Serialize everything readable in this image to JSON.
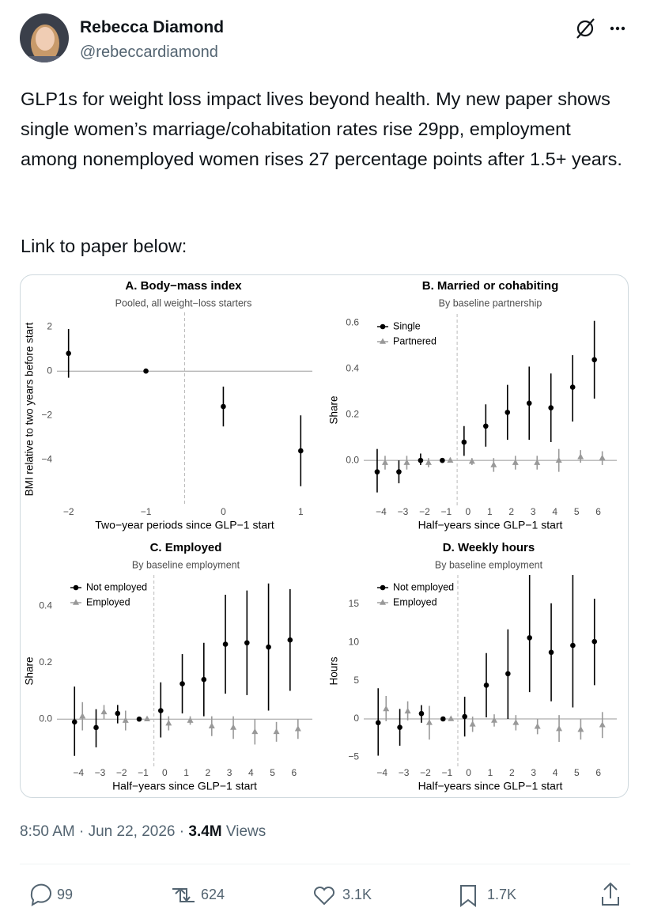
{
  "author": {
    "name": "Rebecca Diamond",
    "handle": "@rebeccardiamond"
  },
  "text": [
    "GLP1s for weight loss impact lives beyond health. My new paper shows single women’s marriage/cohabitation rates rise 29pp, employment among nonemployed women rises 27 percentage points after 1.5+ years.",
    "Link to paper below:"
  ],
  "chart_data": [
    {
      "type": "errorbar",
      "title": "A. Body−mass index",
      "subtitle": "Pooled, all weight−loss starters",
      "x_label": "Two−year periods since GLP−1 start",
      "y_label": "BMI relative to two years before start",
      "x": [
        -2,
        -1,
        0,
        1
      ],
      "series": [
        {
          "color": "#000000",
          "marker": "circle",
          "values": [
            0.8,
            0,
            -1.6,
            -3.6
          ],
          "lower": [
            -0.3,
            null,
            -2.5,
            -5.2
          ],
          "upper": [
            1.9,
            null,
            -0.7,
            -2.0
          ]
        }
      ],
      "xlim": [
        -2.15,
        1.15
      ],
      "ylim": [
        -6.1,
        2.65
      ],
      "xticks": [
        {
          "value": -2,
          "label": "−2"
        },
        {
          "value": -1,
          "label": "−1"
        },
        0,
        1
      ],
      "yticks": [
        {
          "value": -4,
          "label": "−4"
        },
        {
          "value": -2,
          "label": "−2"
        },
        0,
        2
      ],
      "hline": 0,
      "vline": -0.5,
      "grid": false
    },
    {
      "type": "errorbar",
      "title": "B. Married or cohabiting",
      "subtitle": "By baseline partnership",
      "x_label": "Half−years since GLP−1 start",
      "y_label": "Share",
      "legend": "top-left",
      "x": [
        -4,
        -3,
        -2,
        -1,
        0,
        1,
        2,
        3,
        4,
        5,
        6
      ],
      "series": [
        {
          "name": "Single",
          "color": "#000000",
          "marker": "circle",
          "values": [
            -0.05,
            -0.05,
            0.0,
            0.0,
            0.08,
            0.15,
            0.21,
            0.25,
            0.23,
            0.32,
            0.44
          ],
          "lower": [
            -0.14,
            -0.1,
            -0.02,
            null,
            0.02,
            0.06,
            0.09,
            0.09,
            0.08,
            0.17,
            0.27
          ],
          "upper": [
            0.05,
            0.0,
            0.03,
            null,
            0.15,
            0.245,
            0.33,
            0.41,
            0.38,
            0.46,
            0.61
          ]
        },
        {
          "name": "Partnered",
          "color": "#999999",
          "marker": "triangle",
          "values": [
            -0.01,
            -0.01,
            -0.01,
            0.0,
            -0.005,
            -0.02,
            -0.01,
            -0.01,
            0.0,
            0.015,
            0.01
          ],
          "lower": [
            -0.04,
            -0.04,
            -0.03,
            null,
            -0.02,
            -0.05,
            -0.04,
            -0.04,
            -0.05,
            -0.01,
            -0.02
          ],
          "upper": [
            0.02,
            0.02,
            0.01,
            null,
            0.01,
            0.01,
            0.02,
            0.02,
            0.05,
            0.045,
            0.04
          ]
        }
      ],
      "xlim": [
        -4.8,
        6.85
      ],
      "ylim": [
        -0.2,
        0.64
      ],
      "xticks": [
        {
          "value": -4,
          "label": "−4"
        },
        {
          "value": -3,
          "label": "−3"
        },
        {
          "value": -2,
          "label": "−2"
        },
        {
          "value": -1,
          "label": "−1"
        },
        0,
        1,
        2,
        3,
        4,
        5,
        6
      ],
      "yticks": [
        {
          "value": 0,
          "label": "0.0"
        },
        0.2,
        0.4,
        0.6
      ],
      "hline": 0,
      "vline": -0.5,
      "grid": false
    },
    {
      "type": "errorbar",
      "title": "C. Employed",
      "subtitle": "By baseline employment",
      "x_label": "Half−years since GLP−1 start",
      "y_label": "Share",
      "legend": "top-left",
      "x": [
        -4,
        -3,
        -2,
        -1,
        0,
        1,
        2,
        3,
        4,
        5,
        6
      ],
      "series": [
        {
          "name": "Not employed",
          "color": "#000000",
          "marker": "circle",
          "values": [
            -0.01,
            -0.03,
            0.02,
            0.0,
            0.03,
            0.125,
            0.14,
            0.265,
            0.27,
            0.255,
            0.28
          ],
          "lower": [
            -0.13,
            -0.1,
            -0.015,
            null,
            -0.065,
            0.02,
            0.01,
            0.09,
            0.085,
            0.03,
            0.1
          ],
          "upper": [
            0.115,
            0.035,
            0.05,
            null,
            0.13,
            0.23,
            0.27,
            0.44,
            0.455,
            0.48,
            0.46
          ]
        },
        {
          "name": "Employed",
          "color": "#999999",
          "marker": "triangle",
          "values": [
            0.01,
            0.025,
            -0.005,
            0.0,
            -0.015,
            -0.005,
            -0.025,
            -0.03,
            -0.045,
            -0.045,
            -0.035
          ],
          "lower": [
            -0.04,
            0.0,
            -0.04,
            null,
            -0.04,
            -0.02,
            -0.06,
            -0.07,
            -0.09,
            -0.08,
            -0.07
          ],
          "upper": [
            0.06,
            0.05,
            0.03,
            null,
            0.01,
            0.01,
            0.01,
            0.01,
            0.0,
            -0.01,
            0.0
          ]
        }
      ],
      "xlim": [
        -5,
        6.85
      ],
      "ylim": [
        -0.17,
        0.51
      ],
      "xticks": [
        {
          "value": -4,
          "label": "−4"
        },
        {
          "value": -3,
          "label": "−3"
        },
        {
          "value": -2,
          "label": "−2"
        },
        {
          "value": -1,
          "label": "−1"
        },
        0,
        1,
        2,
        3,
        4,
        5,
        6
      ],
      "yticks": [
        {
          "value": 0,
          "label": "0.0"
        },
        0.2,
        0.4
      ],
      "hline": 0,
      "vline": -0.5,
      "grid": false
    },
    {
      "type": "errorbar",
      "title": "D. Weekly hours",
      "subtitle": "By baseline employment",
      "x_label": "Half−years since GLP−1 start",
      "y_label": "Hours",
      "legend": "top-left",
      "x": [
        -4,
        -3,
        -2,
        -1,
        0,
        1,
        2,
        3,
        4,
        5,
        6
      ],
      "series": [
        {
          "name": "Not employed",
          "color": "#000000",
          "marker": "circle",
          "values": [
            -0.5,
            -1.1,
            0.7,
            0.0,
            0.3,
            4.4,
            5.9,
            10.6,
            8.7,
            9.6,
            10.1
          ],
          "lower": [
            -4.8,
            -3.5,
            -0.5,
            null,
            -2.3,
            0.2,
            0.0,
            3.5,
            2.3,
            1.5,
            4.4
          ],
          "upper": [
            4.0,
            1.3,
            1.8,
            null,
            2.9,
            8.6,
            11.7,
            19.5,
            15.1,
            19.5,
            15.7
          ]
        },
        {
          "name": "Employed",
          "color": "#999999",
          "marker": "triangle",
          "values": [
            1.3,
            1.0,
            -0.5,
            0.0,
            -0.7,
            -0.2,
            -0.5,
            -1.0,
            -1.3,
            -1.4,
            -0.8
          ],
          "lower": [
            -0.3,
            -0.2,
            -2.7,
            null,
            -1.7,
            -1.0,
            -1.5,
            -2.0,
            -3.0,
            -2.7,
            -2.5
          ],
          "upper": [
            3.0,
            2.3,
            1.7,
            null,
            0.3,
            0.6,
            0.5,
            0.0,
            0.5,
            0.0,
            0.9
          ]
        }
      ],
      "xlim": [
        -4.85,
        6.85
      ],
      "ylim": [
        -6.3,
        18.8
      ],
      "xticks": [
        {
          "value": -4,
          "label": "−4"
        },
        {
          "value": -3,
          "label": "−3"
        },
        {
          "value": -2,
          "label": "−2"
        },
        {
          "value": -1,
          "label": "−1"
        },
        0,
        1,
        2,
        3,
        4,
        5,
        6
      ],
      "yticks": [
        {
          "value": -5,
          "label": "−5"
        },
        0,
        5,
        10,
        15
      ],
      "hline": 0,
      "vline": -0.5,
      "grid": false
    }
  ],
  "meta": {
    "time": "8:50 AM",
    "separator": "·",
    "date": "Jun 22, 2026",
    "views": "3.4M",
    "views_label": "Views"
  },
  "actions": {
    "replies": "99",
    "reposts": "624",
    "likes": "3.1K",
    "bookmarks": "1.7K"
  }
}
